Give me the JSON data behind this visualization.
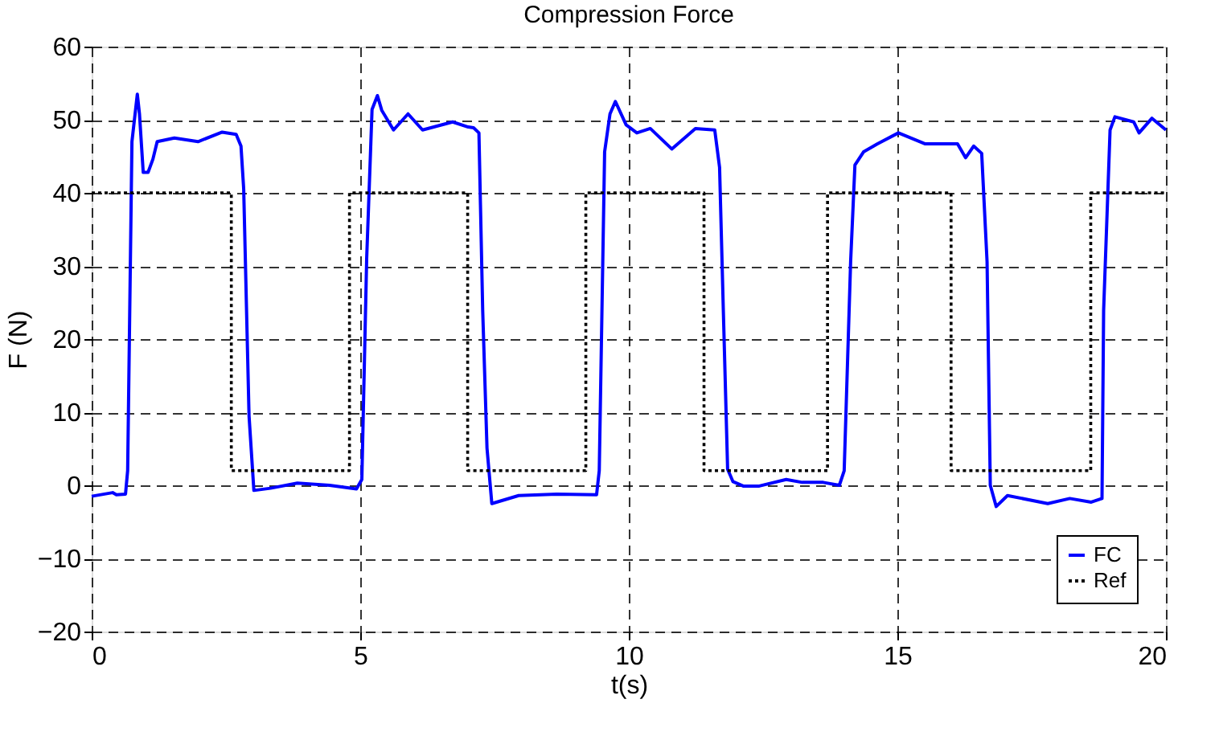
{
  "chart_data": {
    "type": "line",
    "title": "Compression Force",
    "xlabel": "t(s)",
    "ylabel": "F (N)",
    "xlim": [
      0,
      20
    ],
    "xticks": [
      0,
      5,
      10,
      15,
      20
    ],
    "ylim": [
      -20,
      60
    ],
    "yticks": [
      -20,
      -10,
      0,
      10,
      20,
      30,
      40,
      50,
      60
    ],
    "grid": true,
    "legend": "bottom right",
    "marker": "none",
    "series": [
      {
        "name": "FC",
        "color": "#0000ff",
        "type": "line",
        "line_style": "solid",
        "x": [
          0,
          0.39,
          0.46,
          0.63,
          0.67,
          0.75,
          0.85,
          0.89,
          0.96,
          1.05,
          1.14,
          1.22,
          1.54,
          1.98,
          2.43,
          2.69,
          2.78,
          2.83,
          2.93,
          3.02,
          3.33,
          3.83,
          4.43,
          4.93,
          5.03,
          5.12,
          5.22,
          5.32,
          5.4,
          5.62,
          5.89,
          6.16,
          6.72,
          7.01,
          7.11,
          7.21,
          7.28,
          7.36,
          7.45,
          7.95,
          8.66,
          9.4,
          9.45,
          9.55,
          9.65,
          9.75,
          9.95,
          10.15,
          10.4,
          10.8,
          11.24,
          11.6,
          11.69,
          11.76,
          11.84,
          11.94,
          12.13,
          12.43,
          12.93,
          13.23,
          13.62,
          13.92,
          14.01,
          14.13,
          14.21,
          14.37,
          14.63,
          15.02,
          15.52,
          16.12,
          16.27,
          16.42,
          16.57,
          16.67,
          16.73,
          16.84,
          17.05,
          17.8,
          18.21,
          18.61,
          18.81,
          18.84,
          18.96,
          19.05,
          19.4,
          19.5,
          19.74,
          20.0
        ],
        "values": [
          -1.5,
          -1.0,
          -1.3,
          -1.2,
          2,
          47,
          53.5,
          50.8,
          42.8,
          42.8,
          44.6,
          47,
          47.5,
          47,
          48.3,
          48,
          46.4,
          40.6,
          9.5,
          -0.7,
          -0.4,
          0.3,
          0,
          -0.5,
          0.8,
          31,
          51.4,
          53.3,
          51.3,
          48.6,
          50.8,
          48.6,
          49.7,
          49,
          48.9,
          48.2,
          23.9,
          5.1,
          -2.5,
          -1.4,
          -1.2,
          -1.3,
          2,
          45.6,
          50.8,
          52.5,
          49.3,
          48.2,
          48.8,
          46,
          48.8,
          48.6,
          43.5,
          23.9,
          2.2,
          0.5,
          -0.1,
          -0.1,
          0.8,
          0.4,
          0.4,
          0,
          2,
          30.6,
          43.8,
          45.6,
          46.7,
          48.2,
          46.7,
          46.7,
          44.8,
          46.4,
          45.4,
          30.6,
          0,
          -2.9,
          -1.4,
          -2.5,
          -1.8,
          -2.3,
          -1.8,
          23.9,
          48.6,
          50.4,
          49.7,
          48.2,
          50.2,
          48.6
        ]
      },
      {
        "name": "Ref",
        "color": "#000000",
        "type": "step",
        "line_style": "dotted",
        "x": [
          0,
          2.6,
          4.8,
          7.0,
          9.2,
          11.4,
          13.7,
          16.0,
          18.6,
          20
        ],
        "values": [
          40,
          2,
          40,
          2,
          40,
          2,
          40,
          2,
          40,
          40
        ]
      }
    ]
  }
}
